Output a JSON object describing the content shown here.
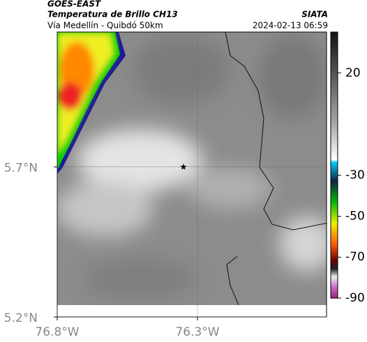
{
  "header": {
    "title": "GOES-EAST",
    "subtitle": "Temperatura de Brillo CH13",
    "route": "Vía Medellín - Quibdó 50km",
    "source": "SIATA",
    "timestamp": "2024-02-13 06:59"
  },
  "map": {
    "xlim": [
      -76.8,
      -75.84
    ],
    "ylim": [
      5.2,
      6.15
    ],
    "xticks": [
      {
        "value": -76.8,
        "label": "76.8°W"
      },
      {
        "value": -76.3,
        "label": "76.3°W"
      }
    ],
    "yticks": [
      {
        "value": 5.2,
        "label": "5.2°N"
      },
      {
        "value": 5.7,
        "label": "5.7°N"
      }
    ],
    "grid": true,
    "marker": {
      "lon": -76.35,
      "lat": 5.7
    }
  },
  "colorbar": {
    "clim": [
      40,
      -90
    ],
    "ticks": [
      20,
      -30,
      -50,
      -70,
      -90
    ]
  }
}
